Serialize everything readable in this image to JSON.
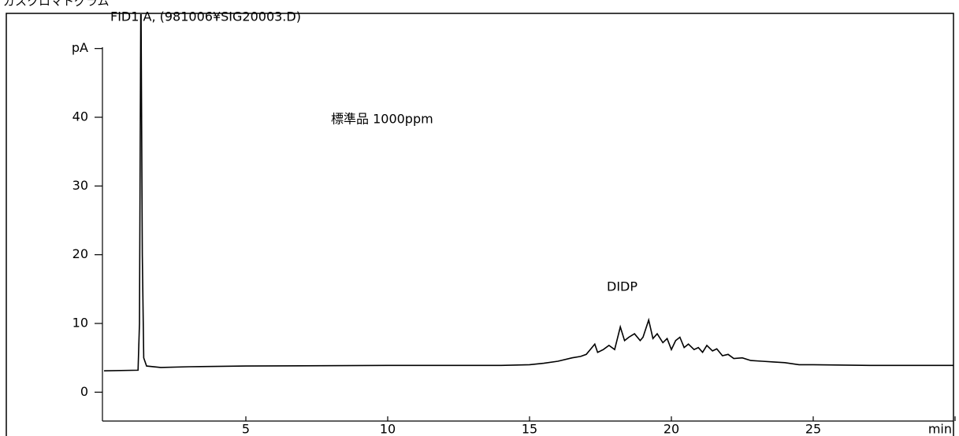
{
  "chart_data": {
    "type": "line",
    "title": "ガスクロマトグラム",
    "subtitle": "FID1 A, (981006¥SIG20003.D)",
    "annotations": [
      "標準品 1000ppm",
      "DIDP"
    ],
    "xlim": [
      0,
      30
    ],
    "ylim": [
      -4.2,
      55
    ],
    "xticks": [
      5,
      10,
      15,
      20,
      25,
      {
        "value": 30,
        "label": "min"
      }
    ],
    "yticks": [
      0,
      10,
      20,
      30,
      40,
      {
        "value": 50,
        "label": "pA"
      }
    ],
    "series": [
      {
        "color": "#000000",
        "x": [
          0,
          1.2,
          1.25,
          1.3,
          1.35,
          1.4,
          1.5,
          2,
          3,
          5,
          10,
          14,
          15,
          15.5,
          16,
          16.5,
          16.8,
          17,
          17.2,
          17.3,
          17.4,
          17.6,
          17.8,
          18.0,
          18.2,
          18.35,
          18.5,
          18.7,
          18.9,
          19.0,
          19.2,
          19.35,
          19.5,
          19.7,
          19.85,
          20.0,
          20.15,
          20.3,
          20.45,
          20.6,
          20.8,
          20.95,
          21.1,
          21.25,
          21.45,
          21.6,
          21.8,
          22.0,
          22.2,
          22.5,
          22.8,
          23.2,
          23.6,
          24,
          24.5,
          25,
          27,
          30
        ],
        "values": [
          3.1,
          3.2,
          10,
          60,
          20,
          5,
          3.8,
          3.6,
          3.7,
          3.8,
          3.9,
          3.9,
          4.0,
          4.2,
          4.5,
          5.0,
          5.2,
          5.5,
          6.5,
          7.0,
          5.8,
          6.2,
          6.8,
          6.2,
          9.5,
          7.5,
          8.0,
          8.5,
          7.5,
          8.0,
          10.5,
          7.8,
          8.5,
          7.2,
          7.8,
          6.2,
          7.5,
          8.0,
          6.5,
          7.0,
          6.2,
          6.5,
          5.8,
          6.8,
          6.0,
          6.3,
          5.3,
          5.5,
          4.9,
          5.0,
          4.6,
          4.5,
          4.4,
          4.3,
          4.0,
          4.0,
          3.9,
          3.9
        ]
      }
    ]
  }
}
